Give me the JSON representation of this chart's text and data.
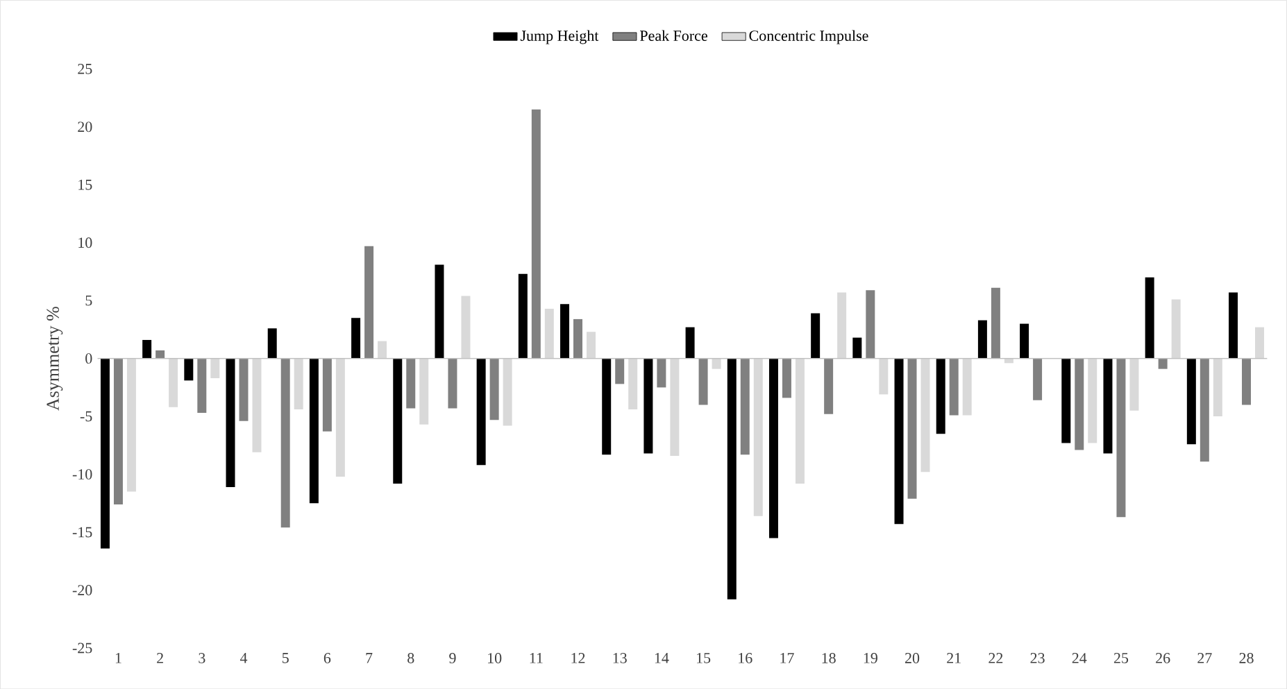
{
  "chart_data": {
    "type": "bar",
    "ylabel": "Asymmetry %",
    "categories": [
      "1",
      "2",
      "3",
      "4",
      "5",
      "6",
      "7",
      "8",
      "9",
      "10",
      "11",
      "12",
      "13",
      "14",
      "15",
      "16",
      "17",
      "18",
      "19",
      "20",
      "21",
      "22",
      "23",
      "24",
      "25",
      "26",
      "27",
      "28"
    ],
    "series": [
      {
        "name": "Jump Height",
        "color": "#000000",
        "values": [
          -16.4,
          1.6,
          -1.9,
          -11.1,
          2.6,
          -12.5,
          3.5,
          -10.8,
          8.1,
          -9.2,
          7.3,
          4.7,
          -8.3,
          -8.2,
          2.7,
          -20.8,
          -15.5,
          3.9,
          1.8,
          -14.3,
          -6.5,
          3.3,
          3.0,
          -7.3,
          -8.2,
          7.0,
          -7.4,
          5.7
        ]
      },
      {
        "name": "Peak Force",
        "color": "#808080",
        "values": [
          -12.6,
          0.7,
          -4.7,
          -5.4,
          -14.6,
          -6.3,
          9.7,
          -4.3,
          -4.3,
          -5.3,
          21.5,
          3.4,
          -2.2,
          -2.5,
          -4.0,
          -8.3,
          -3.4,
          -4.8,
          5.9,
          -12.1,
          -4.9,
          6.1,
          -3.6,
          -7.9,
          -13.7,
          -0.9,
          -8.9,
          -4.0
        ]
      },
      {
        "name": "Concentric Impulse",
        "color": "#d9d9d9",
        "values": [
          -11.5,
          -4.2,
          -1.7,
          -8.1,
          -4.4,
          -10.2,
          1.5,
          -5.7,
          5.4,
          -5.8,
          4.3,
          2.3,
          -4.4,
          -8.4,
          -0.9,
          -13.6,
          -10.8,
          5.7,
          -3.1,
          -9.8,
          -4.9,
          -0.4,
          0.0,
          -7.3,
          -4.5,
          5.1,
          -5.0,
          2.7
        ]
      }
    ],
    "ylim": [
      -25,
      25
    ],
    "yticks": [
      -25,
      -20,
      -15,
      -10,
      -5,
      0,
      5,
      10,
      15,
      20,
      25
    ],
    "legend": "top"
  }
}
